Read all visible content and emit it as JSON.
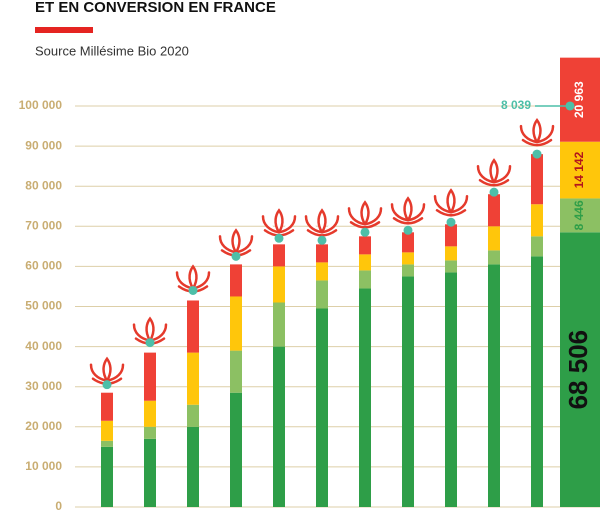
{
  "chart_data": {
    "type": "bar",
    "stacked": true,
    "title": "ET EN CONVERSION EN FRANCE",
    "subtitle": "Source Millésime Bio 2020",
    "categories": [
      null,
      null,
      null,
      null,
      null,
      null,
      null,
      null,
      null,
      null,
      null,
      null
    ],
    "series": [
      {
        "color": "#2e9e48",
        "values": [
          15000,
          17000,
          20000,
          28500,
          40000,
          49500,
          54500,
          57500,
          58500,
          60500,
          62500,
          68506
        ],
        "value_labels": [
          null,
          null,
          null,
          null,
          null,
          null,
          null,
          null,
          null,
          null,
          null,
          "68 506"
        ]
      },
      {
        "color": "#8cc063",
        "values": [
          1500,
          3000,
          5500,
          10500,
          11000,
          7000,
          4500,
          3000,
          3000,
          3500,
          5000,
          8446
        ],
        "value_labels": [
          null,
          null,
          null,
          null,
          null,
          null,
          null,
          null,
          null,
          null,
          null,
          "8 446"
        ]
      },
      {
        "color": "#ffc60b",
        "values": [
          5000,
          6500,
          13000,
          13500,
          9000,
          4500,
          4000,
          3000,
          3500,
          6000,
          8000,
          14142
        ],
        "value_labels": [
          null,
          null,
          null,
          null,
          null,
          null,
          null,
          null,
          null,
          null,
          null,
          "14 142"
        ]
      },
      {
        "color": "#ef4136",
        "values": [
          7000,
          12000,
          13000,
          8000,
          5500,
          4500,
          4500,
          5000,
          5500,
          8000,
          12500,
          20963
        ],
        "value_labels": [
          null,
          null,
          null,
          null,
          null,
          null,
          null,
          null,
          null,
          null,
          null,
          "20 963"
        ]
      },
      {
        "color": "#4dbfa8",
        "axis": "y2",
        "values": [
          2452,
          3296,
          4341,
          5024,
          5386,
          5346,
          5507,
          5547,
          5708,
          6311,
          7074,
          8039
        ],
        "value_labels": [
          null,
          null,
          null,
          null,
          null,
          null,
          null,
          null,
          null,
          null,
          null,
          "8 039"
        ]
      }
    ],
    "ylim": [
      0,
      100000
    ],
    "yticks": [
      {
        "value": 0,
        "label": "0"
      },
      {
        "value": 10000,
        "label": "10 000"
      },
      {
        "value": 20000,
        "label": "20 000"
      },
      {
        "value": 30000,
        "label": "30 000"
      },
      {
        "value": 40000,
        "label": "40 000"
      },
      {
        "value": 50000,
        "label": "50 000"
      },
      {
        "value": 60000,
        "label": "60 000"
      },
      {
        "value": 70000,
        "label": "70 000"
      },
      {
        "value": 80000,
        "label": "80 000"
      },
      {
        "value": 90000,
        "label": "90 000"
      },
      {
        "value": 100000,
        "label": "100 000"
      }
    ],
    "y2lim": [
      0,
      8440
    ],
    "grid": true
  }
}
